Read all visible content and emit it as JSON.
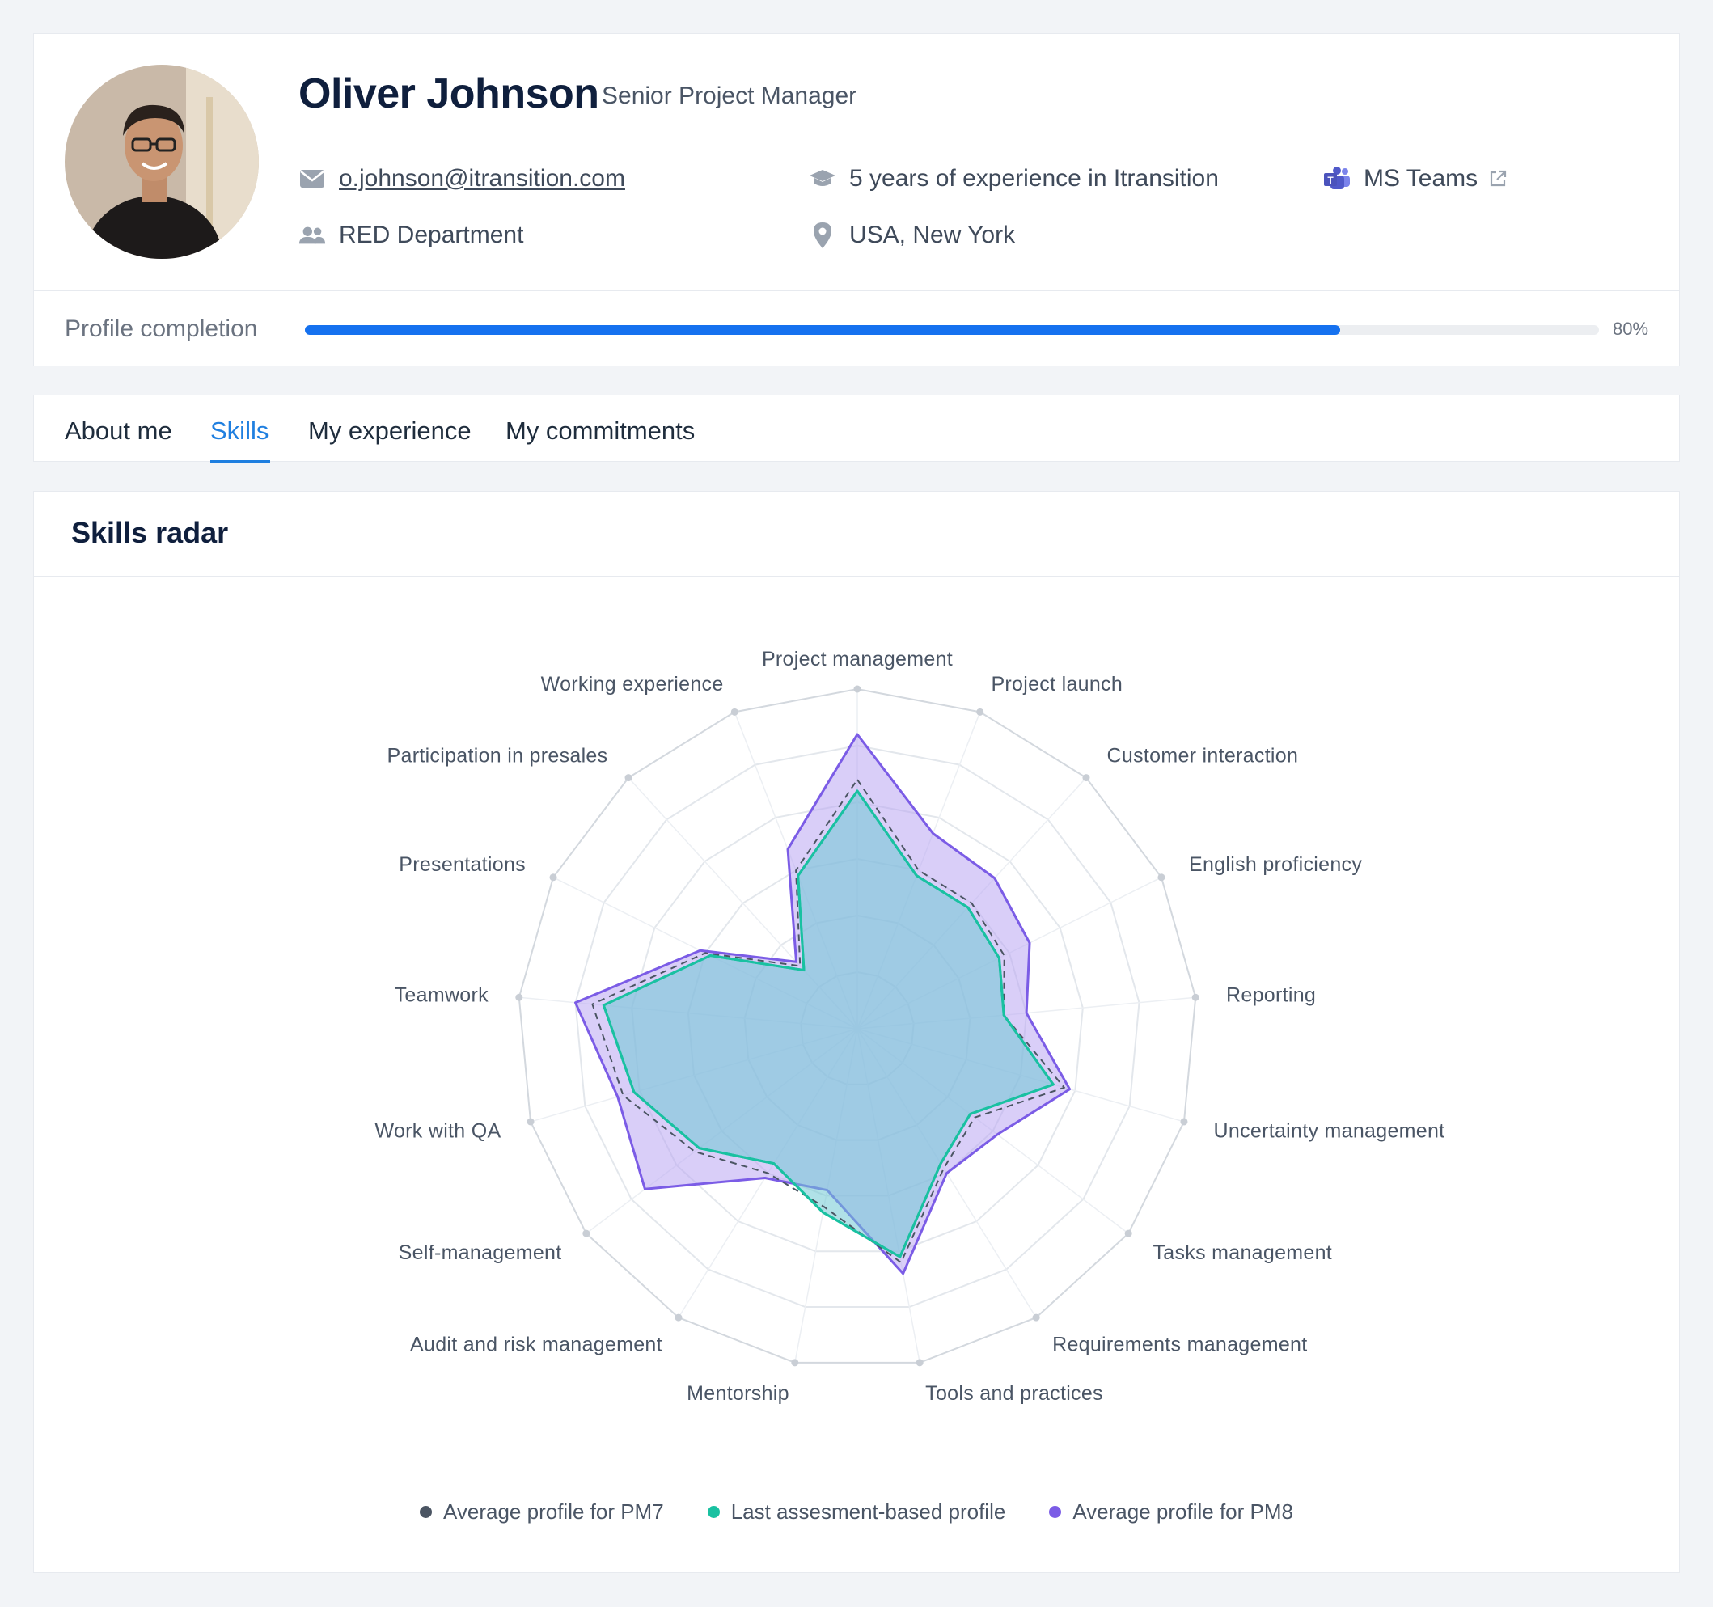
{
  "profile": {
    "name": "Oliver Johnson",
    "role": "Senior Project Manager",
    "email": "o.johnson@itransition.com",
    "experience": "5 years of experience in Itransition",
    "messenger": "MS Teams",
    "department": "RED Department",
    "location": "USA, New York"
  },
  "completion": {
    "label": "Profile completion",
    "value_text": "80%",
    "fraction": 0.8
  },
  "tabs": [
    {
      "label": "About me",
      "active": false
    },
    {
      "label": "Skills",
      "active": true
    },
    {
      "label": "My experience",
      "active": false
    },
    {
      "label": "My commitments",
      "active": false
    }
  ],
  "radar": {
    "title": "Skills radar"
  },
  "chart_data": {
    "type": "radar",
    "title": "Skills radar",
    "axes": [
      "Project management",
      "Project launch",
      "Customer interaction",
      "English proficiency",
      "Reporting",
      "Uncertainty management",
      "Tasks management",
      "Requirements management",
      "Tools and practices",
      "Mentorship",
      "Audit and risk management",
      "Self-management",
      "Work with QA",
      "Teamwork",
      "Presentations",
      "Participation in presales",
      "Working experience"
    ],
    "range": [
      0,
      6
    ],
    "rings": 6,
    "series": [
      {
        "name": "Average profile for PM7",
        "color": "#4b5563",
        "style": "dashed",
        "values": [
          4.4,
          3.0,
          3.0,
          2.9,
          2.6,
          3.8,
          2.6,
          2.9,
          4.2,
          3.2,
          3.0,
          3.6,
          4.3,
          4.7,
          3.0,
          1.5,
          3.0
        ]
      },
      {
        "name": "Last assesment-based profile",
        "color": "#19c1a1",
        "style": "solid",
        "values": [
          4.2,
          2.9,
          2.9,
          2.8,
          2.6,
          3.6,
          2.5,
          2.8,
          4.1,
          3.3,
          2.8,
          3.5,
          4.1,
          4.5,
          2.9,
          1.4,
          2.9
        ]
      },
      {
        "name": "Average profile for PM8",
        "color": "#7b5ce6",
        "style": "solid",
        "values": [
          5.2,
          3.7,
          3.6,
          3.4,
          3.0,
          3.9,
          3.1,
          3.0,
          4.4,
          2.9,
          3.1,
          4.7,
          4.4,
          5.0,
          3.1,
          1.6,
          3.4
        ]
      }
    ],
    "legend_position": "bottom"
  }
}
